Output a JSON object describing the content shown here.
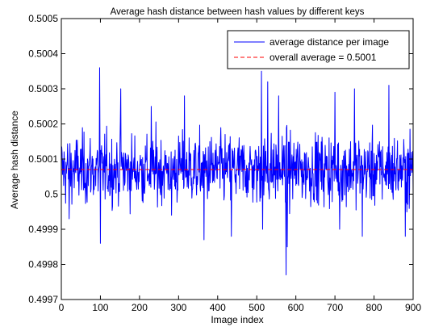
{
  "chart_data": {
    "type": "line",
    "title": "Average hash distance between hash values by different keys",
    "xlabel": "Image index",
    "ylabel": "Average hash distance",
    "xlim": [
      0,
      900
    ],
    "ylim": [
      0.4997,
      0.5005
    ],
    "x_ticks": [
      "0",
      "100",
      "200",
      "300",
      "400",
      "500",
      "600",
      "700",
      "800",
      "900"
    ],
    "y_ticks": [
      "0.4997",
      "0.4998",
      "0.4999",
      "0.5",
      "0.5001",
      "0.5002",
      "0.5003",
      "0.5004",
      "0.5005"
    ],
    "grid": false,
    "legend_position": "top-right",
    "series": [
      {
        "name": "average distance per image",
        "color": "#0000ff",
        "style": "solid",
        "x_start": 1,
        "x_step": 1,
        "noisy_count": 900,
        "approx_mean": 0.50007,
        "approx_std": 6e-05,
        "notable_points": [
          {
            "x": 20,
            "y": 0.49993
          },
          {
            "x": 98,
            "y": 0.50036
          },
          {
            "x": 100,
            "y": 0.49986
          },
          {
            "x": 152,
            "y": 0.5003
          },
          {
            "x": 230,
            "y": 0.50025
          },
          {
            "x": 282,
            "y": 0.49994
          },
          {
            "x": 315,
            "y": 0.50028
          },
          {
            "x": 365,
            "y": 0.49987
          },
          {
            "x": 435,
            "y": 0.49988
          },
          {
            "x": 512,
            "y": 0.50035
          },
          {
            "x": 515,
            "y": 0.4999
          },
          {
            "x": 528,
            "y": 0.50032
          },
          {
            "x": 556,
            "y": 0.50028
          },
          {
            "x": 575,
            "y": 0.49977
          },
          {
            "x": 578,
            "y": 0.49985
          },
          {
            "x": 700,
            "y": 0.50029
          },
          {
            "x": 712,
            "y": 0.4999
          },
          {
            "x": 750,
            "y": 0.5003
          },
          {
            "x": 770,
            "y": 0.49988
          },
          {
            "x": 838,
            "y": 0.50031
          },
          {
            "x": 880,
            "y": 0.49988
          }
        ]
      },
      {
        "name": "overall average = 0.5001",
        "color": "#ff0000",
        "style": "dashed",
        "y": 0.50007
      }
    ]
  }
}
